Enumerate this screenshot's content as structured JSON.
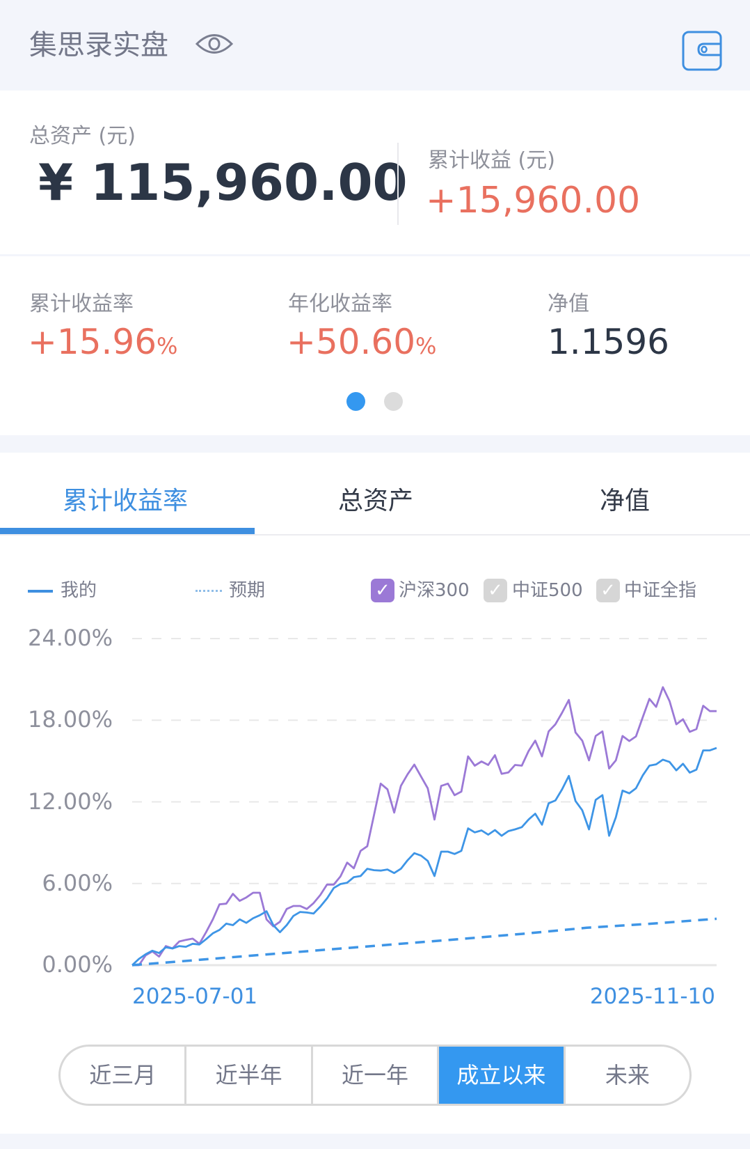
{
  "header": {
    "title": "集思录实盘",
    "eye_icon": "eye-icon",
    "wallet_icon": "wallet-icon"
  },
  "summary": {
    "total_assets_label": "总资产 (元)",
    "total_assets_value": "¥ 115,960.00",
    "cum_profit_label": "累计收益 (元)",
    "cum_profit_value": "+15,960.00"
  },
  "stats": [
    {
      "label": "累计收益率",
      "value": "+15.96",
      "unit": "%"
    },
    {
      "label": "年化收益率",
      "value": "+50.60",
      "unit": "%"
    },
    {
      "label": "净值",
      "value": "1.1596",
      "unit": ""
    }
  ],
  "pager": {
    "pages": 2,
    "active": 1
  },
  "tabs": [
    {
      "label": "累计收益率",
      "active": true
    },
    {
      "label": "总资产",
      "active": false
    },
    {
      "label": "净值",
      "active": false
    }
  ],
  "legend": {
    "mine": "我的",
    "expected": "预期",
    "indices": [
      {
        "label": "沪深300",
        "checked": true,
        "color": "#9b79d6"
      },
      {
        "label": "中证500",
        "checked": false,
        "color": "#d6d6d6"
      },
      {
        "label": "中证全指",
        "checked": false,
        "color": "#d6d6d6"
      }
    ]
  },
  "ranges": [
    {
      "label": "近三月",
      "active": false
    },
    {
      "label": "近半年",
      "active": false
    },
    {
      "label": "近一年",
      "active": false
    },
    {
      "label": "成立以来",
      "active": true
    },
    {
      "label": "未来",
      "active": false
    }
  ],
  "colors": {
    "accent": "#3498f0",
    "positive": "#e9705f",
    "index": "#9b79d6",
    "mine": "#3e95e6"
  },
  "chart_data": {
    "type": "line",
    "x_tick_labels": [
      "2025-07-01",
      "2025-11-10"
    ],
    "x_range": [
      "2025-07-01",
      "2025-11-10"
    ],
    "y_tick_labels": [
      "24.00%",
      "18.00%",
      "12.00%",
      "6.00%",
      "0.00%"
    ],
    "ylim": [
      0,
      24
    ],
    "y_unit": "%",
    "grid": true,
    "legend_position": "top",
    "series": [
      {
        "name": "沪深300",
        "style": "solid",
        "color": "#9b79d6",
        "values": [
          0,
          0,
          0.72,
          1.01,
          0.63,
          1.4,
          1.23,
          1.74,
          1.86,
          1.95,
          1.57,
          2.42,
          3.36,
          4.47,
          4.52,
          5.24,
          4.73,
          4.98,
          5.32,
          5.32,
          3.36,
          2.85,
          3.19,
          4.13,
          4.35,
          4.35,
          4.13,
          4.56,
          5.15,
          5.92,
          5.92,
          6.52,
          7.54,
          7.12,
          8.4,
          8.74,
          11.04,
          13.34,
          12.92,
          11.21,
          13.17,
          14.03,
          14.74,
          13.86,
          13.0,
          10.7,
          13.17,
          13.34,
          12.49,
          12.75,
          15.34,
          14.66,
          14.97,
          14.71,
          15.43,
          14.06,
          14.16,
          14.71,
          14.66,
          15.73,
          16.5,
          15.34,
          17.18,
          17.7,
          18.55,
          19.49,
          17.1,
          16.5,
          15.05,
          16.84,
          17.18,
          14.45,
          15.05,
          16.84,
          16.47,
          16.81,
          18.21,
          19.57,
          18.98,
          20.43,
          19.4,
          17.7,
          18.07,
          17.15,
          17.35,
          19.06,
          18.67,
          18.67
        ]
      },
      {
        "name": "我的",
        "style": "solid",
        "color": "#3e95e6",
        "values": [
          0,
          0.46,
          0.8,
          1.06,
          0.89,
          1.31,
          1.23,
          1.4,
          1.35,
          1.57,
          1.52,
          1.91,
          2.34,
          2.59,
          3.05,
          2.94,
          3.36,
          3.11,
          3.45,
          3.67,
          3.96,
          2.94,
          2.42,
          2.94,
          3.62,
          3.91,
          3.87,
          3.79,
          4.3,
          4.9,
          5.67,
          5.96,
          6.06,
          6.47,
          6.55,
          7.08,
          6.98,
          6.95,
          7.03,
          6.77,
          7.08,
          7.71,
          8.23,
          8.05,
          7.66,
          6.55,
          8.34,
          8.34,
          8.17,
          8.4,
          10.05,
          9.76,
          9.9,
          9.59,
          9.93,
          9.51,
          9.85,
          9.98,
          10.14,
          10.7,
          11.13,
          10.32,
          11.89,
          12.1,
          12.92,
          13.91,
          12.06,
          11.38,
          9.98,
          12.15,
          12.49,
          9.51,
          10.87,
          12.83,
          12.63,
          13.0,
          13.94,
          14.66,
          14.76,
          15.1,
          14.93,
          14.32,
          14.8,
          14.15,
          14.37,
          15.78,
          15.78,
          15.96
        ]
      },
      {
        "name": "预期",
        "style": "dashed",
        "color": "#3e95e6",
        "values": [
          0,
          0.38,
          0.76,
          1.14,
          1.52,
          1.9,
          2.3,
          2.75,
          3.05,
          3.41
        ]
      }
    ]
  }
}
